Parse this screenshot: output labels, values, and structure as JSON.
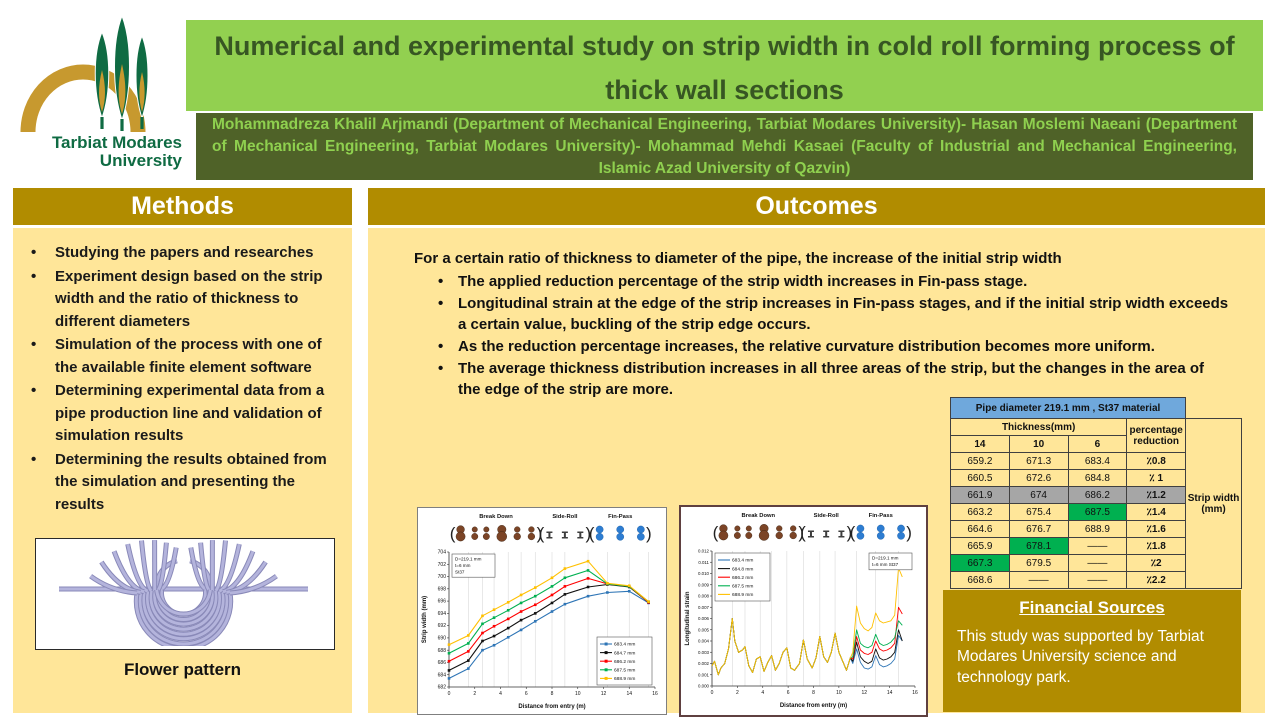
{
  "header": {
    "logo_lines": [
      "Tarbiat Modares",
      "University"
    ],
    "title_lines": [
      "Numerical and experimental study on strip width in cold roll forming process of",
      "thick wall sections"
    ],
    "authors": "Mohammadreza Khalil Arjmandi (Department of Mechanical Engineering, Tarbiat Modares University)- Hasan Moslemi Naeani (Department of Mechanical Engineering, Tarbiat Modares University)- Mohammad Mehdi Kasaei (Faculty of Industrial and Mechanical Engineering, Islamic Azad University of Qazvin)"
  },
  "methods": {
    "heading": "Methods",
    "bullets": [
      "Studying the papers and researches",
      "Experiment design based on the strip width and the ratio of thickness to different diameters",
      "Simulation of the process with one of the available finite element software",
      "Determining experimental data from a pipe production line and validation of simulation results",
      "Determining the results obtained from the simulation and presenting the results"
    ],
    "figure_caption": "Flower pattern"
  },
  "outcomes": {
    "heading": "Outcomes",
    "intro": "For a certain ratio of thickness to diameter of the pipe, the increase of the initial strip width",
    "bullets": [
      "The applied reduction percentage of the strip width increases in Fin-pass stage.",
      "Longitudinal strain at the edge of the strip increases in Fin-pass stages, and if the initial strip width exceeds a certain value, buckling of the strip edge occurs.",
      "As the reduction percentage increases, the relative curvature distribution becomes more uniform.",
      "The average thickness distribution increases in all three areas of the strip, but the changes in the area of the edge of the strip are more."
    ]
  },
  "table": {
    "title": "Pipe diameter 219.1 mm , St37 material",
    "thickness_header": "Thickness(mm)",
    "percentage_header_lines": [
      "percentage",
      "reduction"
    ],
    "strip_width_header_lines": [
      "Strip width",
      "(mm)"
    ],
    "thickness_values": [
      "14",
      "10",
      "6"
    ],
    "rows": [
      [
        "659.2",
        "671.3",
        "683.4",
        "٪0.8"
      ],
      [
        "660.5",
        "672.6",
        "684.8",
        "٪ 1"
      ],
      [
        "661.9",
        "674",
        "686.2",
        "٪1.2"
      ],
      [
        "663.2",
        "675.4",
        "687.5",
        "٪1.4"
      ],
      [
        "664.6",
        "676.7",
        "688.9",
        "٪1.6"
      ],
      [
        "665.9",
        "678.1",
        "——",
        "٪1.8"
      ],
      [
        "667.3",
        "679.5",
        "——",
        "٪2"
      ],
      [
        "668.6",
        "——",
        "——",
        "٪2.2"
      ]
    ],
    "gray_rows": [
      2
    ],
    "green_cells": [
      {
        "row": 3,
        "col": 2
      },
      {
        "row": 5,
        "col": 1
      },
      {
        "row": 6,
        "col": 0
      }
    ],
    "colors": {
      "header_bg": "#6FA8DC",
      "gray": "#A6A6A6",
      "green": "#00B050",
      "cell_bg": "#FFE699"
    }
  },
  "financial": {
    "heading": "Financial Sources",
    "body": "This study was supported by Tarbiat Modares University science and technology park."
  },
  "theme_colors": {
    "gold": "#B18C00",
    "cream": "#FFE699",
    "light_green": "#92D050",
    "dark_green": "#4F6228",
    "title_text": "#375623",
    "logo_green": "#0F6B43",
    "logo_gold": "#C7992F"
  },
  "chart_data": [
    {
      "type": "line",
      "group_labels": [
        "Break Down",
        "Side-Roll",
        "Fin-Pass"
      ],
      "groups": [
        {
          "label": "Break Down",
          "icon": "breakdown",
          "x": [
            0.9,
            2.0,
            2.9,
            4.1,
            5.3,
            6.4
          ],
          "sizes": [
            1.15,
            0.8,
            0.8,
            1.25,
            0.85,
            0.85
          ]
        },
        {
          "label": "Side-Roll",
          "icon": "sideroll",
          "x": [
            7.8,
            9.0,
            10.2
          ]
        },
        {
          "label": "Fin-Pass",
          "icon": "finpass",
          "x": [
            11.7,
            13.3,
            14.9
          ]
        }
      ],
      "info_box": [
        "D=219.1 mm",
        "t=6 mm",
        "St37"
      ],
      "info_pos": "tl",
      "legend_pos": "br",
      "xlabel": "Distance from entry (m)",
      "ylabel": "Strip width (mm)",
      "xlim": [
        0,
        16
      ],
      "ylim": [
        682,
        704
      ],
      "xtick": 2,
      "ytick": 2,
      "ydec": 0,
      "markers": true,
      "x": [
        0,
        1.5,
        2.6,
        3.5,
        4.6,
        5.6,
        6.7,
        8,
        9,
        10.8,
        12.3,
        14,
        15.5
      ],
      "grid_x": [
        1.5,
        2.6,
        3.5,
        4.6,
        5.6,
        6.7,
        8,
        9,
        10.8,
        12.3,
        14,
        15.5
      ],
      "series": [
        {
          "name": "683.4 mm",
          "color": "#2E75B6",
          "values": [
            683.4,
            685.0,
            688.0,
            688.8,
            690.1,
            691.3,
            692.7,
            694.3,
            695.5,
            696.8,
            697.4,
            697.6,
            695.7
          ]
        },
        {
          "name": "684.7 mm",
          "color": "#111111",
          "values": [
            684.7,
            686.3,
            689.5,
            690.3,
            691.6,
            692.9,
            694.0,
            695.7,
            697.1,
            698.3,
            698.7,
            698.3,
            695.8
          ]
        },
        {
          "name": "686.2 mm",
          "color": "#FF0000",
          "values": [
            686.2,
            687.8,
            690.8,
            691.9,
            693.1,
            694.3,
            695.4,
            697.0,
            698.4,
            699.7,
            698.8,
            698.4,
            695.8
          ]
        },
        {
          "name": "687.5 mm",
          "color": "#00B050",
          "values": [
            687.5,
            689.1,
            692.3,
            693.3,
            694.5,
            695.7,
            696.8,
            698.4,
            699.8,
            701.0,
            698.8,
            698.4,
            695.9
          ]
        },
        {
          "name": "688.9 mm",
          "color": "#FFC000",
          "values": [
            688.9,
            690.4,
            693.6,
            694.6,
            695.8,
            697.0,
            698.2,
            699.8,
            701.3,
            702.5,
            698.9,
            698.5,
            695.9
          ]
        }
      ]
    },
    {
      "type": "line",
      "group_labels": [
        "Break Down",
        "Side-Roll",
        "Fin-Pass"
      ],
      "groups": [
        {
          "label": "Break Down",
          "icon": "breakdown",
          "x": [
            0.9,
            2.0,
            2.9,
            4.1,
            5.3,
            6.4
          ],
          "sizes": [
            1.15,
            0.8,
            0.8,
            1.25,
            0.85,
            0.85
          ]
        },
        {
          "label": "Side-Roll",
          "icon": "sideroll",
          "x": [
            7.8,
            9.0,
            10.2
          ]
        },
        {
          "label": "Fin-Pass",
          "icon": "finpass",
          "x": [
            11.7,
            13.3,
            14.9
          ]
        }
      ],
      "info_box": [
        "D=219.1 mm",
        "t=6 mm St37"
      ],
      "info_pos": "tr",
      "legend_pos": "tl",
      "xlabel": "Distance from entry (m)",
      "ylabel": "Longitudinal strain",
      "xlim": [
        0,
        16
      ],
      "ylim": [
        0,
        0.012
      ],
      "xtick": 2,
      "ytick": 0.001,
      "ydec": 3,
      "markers": false,
      "x": [
        0,
        0.2,
        0.5,
        0.7,
        1.0,
        1.3,
        1.6,
        1.8,
        2.1,
        2.4,
        2.6,
        2.9,
        3.2,
        3.5,
        3.8,
        4.1,
        4.4,
        4.7,
        5.0,
        5.3,
        5.6,
        5.9,
        6.2,
        6.5,
        6.9,
        7.2,
        7.5,
        7.9,
        8.2,
        8.5,
        8.8,
        9.1,
        9.4,
        9.7,
        10.0,
        10.3,
        10.6,
        10.9,
        11.1,
        11.4,
        11.7,
        12.0,
        12.3,
        12.6,
        12.9,
        13.2,
        13.5,
        13.8,
        14.1,
        14.4,
        14.7,
        15.0
      ],
      "grid_x": [
        1.6,
        2.6,
        3.8,
        4.7,
        5.9,
        7.2,
        8.5,
        9.7,
        11.4,
        12.9,
        14.7
      ],
      "common_values": [
        0.0018,
        0.0022,
        0.001,
        0.0016,
        0.002,
        0.0033,
        0.006,
        0.004,
        0.003,
        0.0032,
        0.0035,
        0.0018,
        0.0012,
        0.0024,
        0.0026,
        0.0013,
        0.0021,
        0.0027,
        0.0014,
        0.002,
        0.003,
        0.0034,
        0.0016,
        0.0014,
        0.002,
        0.0041,
        0.0024,
        0.0016,
        0.0025,
        0.0044,
        0.0026,
        0.0021,
        0.003,
        0.0047,
        0.003,
        0.0022,
        0.0014,
        0.0025
      ],
      "series": [
        {
          "name": "683.4 mm",
          "color": "#2E75B6",
          "tail_values": [
            0.002,
            0.0033,
            0.0021,
            0.0016,
            0.0015,
            0.0017,
            0.0027,
            0.0019,
            0.0017,
            0.0018,
            0.002,
            0.0024,
            0.0045,
            0.004
          ]
        },
        {
          "name": "684.8 mm",
          "color": "#111111",
          "tail_values": [
            0.0022,
            0.0039,
            0.0026,
            0.0022,
            0.002,
            0.0022,
            0.0033,
            0.0025,
            0.0023,
            0.0024,
            0.0026,
            0.003,
            0.005,
            0.004
          ]
        },
        {
          "name": "686.2 mm",
          "color": "#FF0000",
          "tail_values": [
            0.0024,
            0.0044,
            0.0032,
            0.0029,
            0.0028,
            0.003,
            0.004,
            0.0033,
            0.0031,
            0.0032,
            0.0034,
            0.0038,
            0.007,
            0.0064
          ]
        },
        {
          "name": "687.5 mm",
          "color": "#00B050",
          "tail_values": [
            0.0026,
            0.005,
            0.0038,
            0.0035,
            0.0034,
            0.0036,
            0.0046,
            0.0038,
            0.0036,
            0.0037,
            0.0039,
            0.0043,
            0.0058,
            0.0054
          ]
        },
        {
          "name": "688.9 mm",
          "color": "#FFC000",
          "tail_values": [
            0.003,
            0.0071,
            0.0056,
            0.0051,
            0.0049,
            0.0052,
            0.0065,
            0.0058,
            0.0056,
            0.0057,
            0.0058,
            0.0063,
            0.0105,
            0.0097
          ]
        }
      ]
    }
  ]
}
